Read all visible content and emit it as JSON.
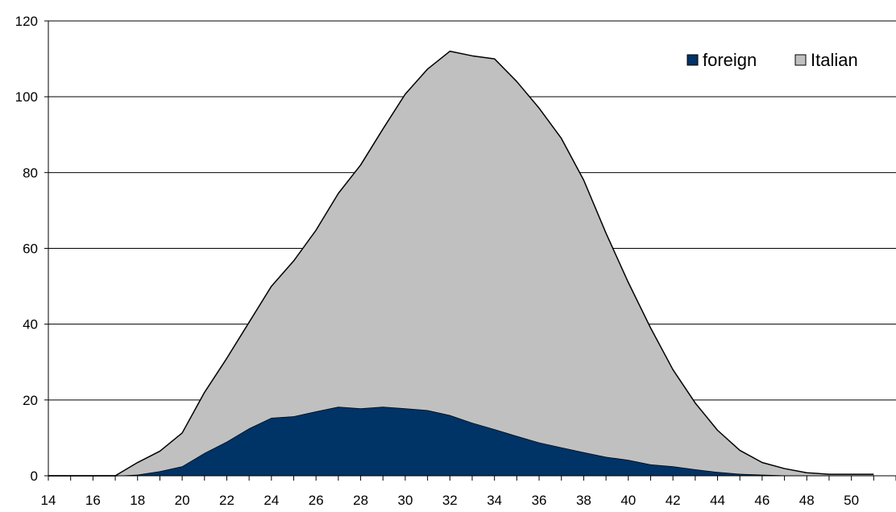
{
  "chart_data": {
    "type": "area",
    "stacked": true,
    "x": [
      14,
      15,
      16,
      17,
      18,
      19,
      20,
      21,
      22,
      23,
      24,
      25,
      26,
      27,
      28,
      29,
      30,
      31,
      32,
      33,
      34,
      35,
      36,
      37,
      38,
      39,
      40,
      41,
      42,
      43,
      44,
      45,
      46,
      47,
      48,
      49,
      50,
      51
    ],
    "x_tick_labels": [
      "14",
      "16",
      "18",
      "20",
      "22",
      "24",
      "26",
      "28",
      "30",
      "32",
      "34",
      "36",
      "38",
      "40",
      "42",
      "44",
      "46",
      "48",
      "50"
    ],
    "y_ticks": [
      0,
      20,
      40,
      60,
      80,
      100,
      120
    ],
    "xlim": [
      14,
      52
    ],
    "ylim": [
      0,
      120
    ],
    "grid": {
      "horizontal": true,
      "vertical": false
    },
    "legend_position": "top-right",
    "series": [
      {
        "name": "foreign",
        "color": "#003366",
        "values": [
          0,
          0,
          0,
          0,
          0.3,
          1.2,
          2.5,
          6.0,
          9.0,
          12.5,
          15.3,
          15.7,
          17.0,
          18.2,
          17.8,
          18.2,
          17.8,
          17.3,
          16.0,
          14.0,
          12.3,
          10.5,
          8.8,
          7.5,
          6.2,
          5.0,
          4.2,
          3.0,
          2.5,
          1.7,
          1.0,
          0.5,
          0.3,
          0.1,
          0.1,
          0.1,
          0.1,
          0.1
        ]
      },
      {
        "name": "Italian",
        "color": "#c0c0c0",
        "values": [
          0,
          0,
          0,
          0,
          3.2,
          5.3,
          8.8,
          16.0,
          22.0,
          28.0,
          34.7,
          41.0,
          47.8,
          56.3,
          64.2,
          73.3,
          82.9,
          90.0,
          96.0,
          96.8,
          97.7,
          93.5,
          88.2,
          81.5,
          71.8,
          59.0,
          46.8,
          36.0,
          25.5,
          17.5,
          11.0,
          6.2,
          3.2,
          1.8,
          0.7,
          0.3,
          0.3,
          0.3
        ]
      }
    ]
  }
}
